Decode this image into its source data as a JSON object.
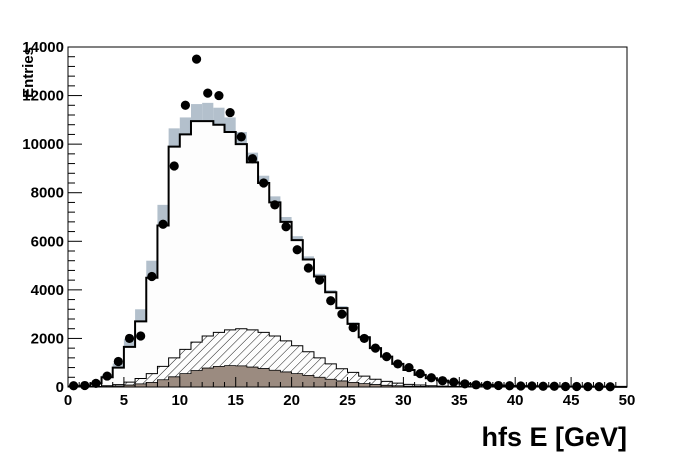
{
  "chart_data": {
    "type": "histogram",
    "xlabel": "hfs E [GeV]",
    "ylabel": "Entries",
    "xlim": [
      0,
      50
    ],
    "ylim": [
      0,
      14000
    ],
    "bin_width": 1,
    "x_ticks": [
      0,
      5,
      10,
      15,
      20,
      25,
      30,
      35,
      40,
      45,
      50
    ],
    "y_ticks": [
      0,
      2000,
      4000,
      6000,
      8000,
      10000,
      12000,
      14000
    ],
    "x_tick_labels": [
      "0",
      "5",
      "10",
      "15",
      "20",
      "25",
      "30",
      "35",
      "40",
      "45",
      "50"
    ],
    "y_tick_labels": [
      "0",
      "2000",
      "4000",
      "6000",
      "8000",
      "10000",
      "12000",
      "14000"
    ],
    "grid": false,
    "colors": {
      "uncertainty_band": "#b3c0cc",
      "total_mc_fill": "#fdfdfd",
      "total_mc_line": "#000000",
      "hatched_component_line": "#000000",
      "filled_component": "#9b8b80",
      "data_points": "#000000"
    },
    "series": [
      {
        "kind": "data",
        "style": "points",
        "x": [
          0.5,
          1.5,
          2.5,
          3.5,
          4.5,
          5.5,
          6.5,
          7.5,
          8.5,
          9.5,
          10.5,
          11.5,
          12.5,
          13.5,
          14.5,
          15.5,
          16.5,
          17.5,
          18.5,
          19.5,
          20.5,
          21.5,
          22.5,
          23.5,
          24.5,
          25.5,
          26.5,
          27.5,
          28.5,
          29.5,
          30.5,
          31.5,
          32.5,
          33.5,
          34.5,
          35.5,
          36.5,
          37.5,
          38.5,
          39.5,
          40.5,
          41.5,
          42.5,
          43.5,
          44.5,
          45.5,
          46.5,
          47.5,
          48.5
        ],
        "y": [
          50,
          60,
          150,
          450,
          1050,
          2000,
          2100,
          4550,
          6700,
          9100,
          11600,
          13500,
          12100,
          12000,
          11300,
          10300,
          9400,
          8400,
          7500,
          6600,
          5650,
          4900,
          4400,
          3550,
          3000,
          2450,
          2000,
          1600,
          1250,
          950,
          800,
          550,
          380,
          260,
          200,
          130,
          90,
          70,
          60,
          50,
          40,
          40,
          30,
          30,
          20,
          20,
          15,
          15,
          10
        ]
      },
      {
        "kind": "total_mc",
        "style": "step",
        "values": [
          20,
          50,
          150,
          400,
          800,
          1650,
          2700,
          4500,
          6650,
          9900,
          10400,
          10950,
          10950,
          10800,
          10500,
          10000,
          9250,
          8400,
          7600,
          6800,
          6050,
          5250,
          4550,
          3900,
          3250,
          2600,
          2050,
          1600,
          1250,
          950,
          700,
          500,
          360,
          260,
          190,
          140,
          100,
          80,
          60,
          40,
          35,
          30,
          25,
          20,
          15,
          15,
          10,
          10,
          10,
          5
        ],
        "uncertainty": [
          5,
          10,
          30,
          80,
          170,
          330,
          500,
          700,
          850,
          750,
          700,
          700,
          750,
          700,
          600,
          500,
          400,
          300,
          250,
          200,
          160,
          130,
          110,
          90,
          80,
          60,
          50,
          40,
          30,
          25,
          20,
          15,
          10,
          8,
          6,
          5,
          4,
          3,
          2,
          2,
          2,
          1,
          1,
          1,
          1,
          1,
          1,
          1,
          1,
          1
        ]
      },
      {
        "kind": "background_component",
        "style": "hatched",
        "values": [
          0,
          0,
          20,
          50,
          100,
          200,
          350,
          550,
          850,
          1200,
          1550,
          1850,
          2100,
          2250,
          2350,
          2400,
          2350,
          2250,
          2100,
          1900,
          1700,
          1450,
          1200,
          950,
          750,
          600,
          450,
          320,
          230,
          160,
          110,
          80,
          50,
          35,
          25,
          20,
          15,
          10,
          8,
          5,
          5,
          3,
          3,
          2,
          2,
          1,
          1,
          1,
          1,
          0
        ]
      },
      {
        "kind": "background_component",
        "style": "filled",
        "values": [
          0,
          0,
          10,
          20,
          40,
          80,
          130,
          190,
          300,
          420,
          550,
          680,
          780,
          850,
          880,
          870,
          820,
          760,
          690,
          620,
          550,
          480,
          400,
          320,
          250,
          190,
          140,
          100,
          70,
          50,
          35,
          25,
          15,
          10,
          8,
          5,
          4,
          3,
          2,
          2,
          1,
          1,
          1,
          0,
          0,
          0,
          0,
          0,
          0,
          0
        ]
      }
    ]
  }
}
